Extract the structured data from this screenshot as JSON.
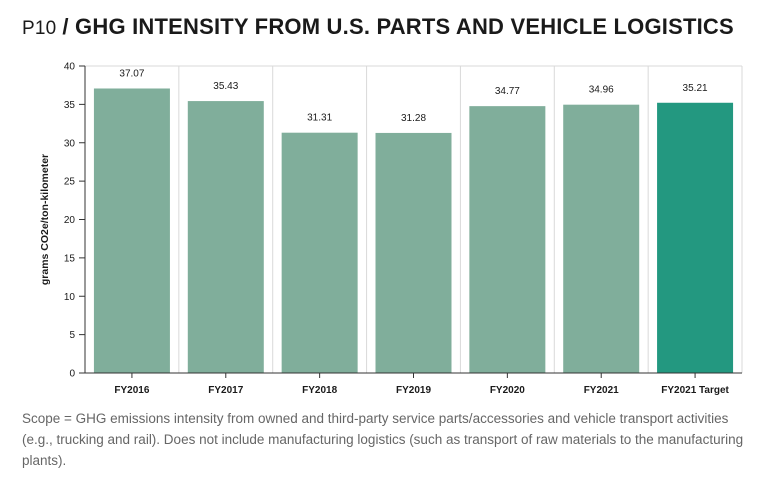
{
  "header": {
    "code": "P10",
    "title": "/ GHG INTENSITY FROM U.S. PARTS AND VEHICLE LOGISTICS"
  },
  "chart_data": {
    "type": "bar",
    "title": "/ GHG INTENSITY FROM U.S. PARTS AND VEHICLE LOGISTICS",
    "xlabel": "",
    "ylabel": "grams CO2e/ton-kilometer",
    "categories": [
      "FY2016",
      "FY2017",
      "FY2018",
      "FY2019",
      "FY2020",
      "FY2021",
      "FY2021 Target"
    ],
    "values": [
      37.07,
      35.43,
      31.31,
      31.28,
      34.77,
      34.96,
      35.21
    ],
    "value_labels": [
      "37.07",
      "35.43",
      "31.31",
      "31.28",
      "34.77",
      "34.96",
      "35.21"
    ],
    "ylim": [
      0,
      40
    ],
    "yticks": [
      "0",
      "5",
      "10",
      "15",
      "20",
      "25",
      "30",
      "35",
      "40"
    ],
    "grid": "vertical",
    "legend": "none",
    "colors": {
      "actual": "#80ae9b",
      "target": "#239880",
      "grid": "#d9d9d9",
      "axis": "#333333"
    }
  },
  "caption": "Scope = GHG emissions intensity from owned and third-party service parts/accessories and vehicle transport activities (e.g., trucking and rail). Does not include manufacturing logistics (such as transport of raw materials to the manufacturing plants)."
}
